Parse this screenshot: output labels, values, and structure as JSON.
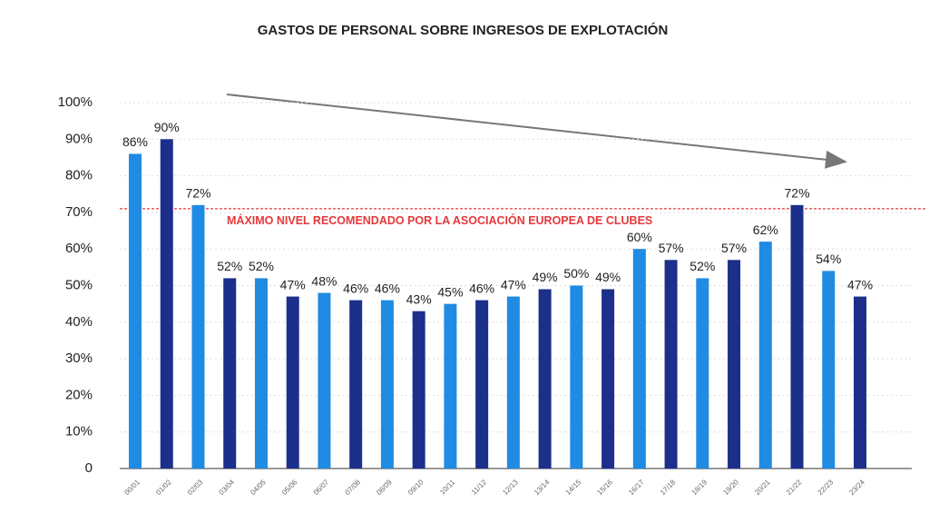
{
  "chart_data": {
    "type": "bar",
    "title": "GASTOS DE PERSONAL SOBRE INGRESOS DE EXPLOTACIÓN",
    "categories": [
      "00/01",
      "01/02",
      "02/03",
      "03/04",
      "04/05",
      "05/06",
      "06/07",
      "07/08",
      "08/09",
      "09/10",
      "10/11",
      "11/12",
      "12/13",
      "13/14",
      "14/15",
      "15/16",
      "16/17",
      "17/18",
      "18/19",
      "19/20",
      "20/21",
      "21/22",
      "22/23",
      "23/24"
    ],
    "values": [
      86,
      90,
      72,
      52,
      52,
      47,
      48,
      46,
      46,
      43,
      45,
      46,
      47,
      49,
      50,
      49,
      60,
      57,
      52,
      57,
      62,
      72,
      54,
      47
    ],
    "value_labels": [
      "86%",
      "90%",
      "72%",
      "52%",
      "52%",
      "47%",
      "48%",
      "46%",
      "46%",
      "43%",
      "45%",
      "46%",
      "47%",
      "49%",
      "50%",
      "49%",
      "60%",
      "57%",
      "52%",
      "57%",
      "62%",
      "72%",
      "54%",
      "47%"
    ],
    "colors": [
      "#1f8be2",
      "#1b2f8b"
    ],
    "ylim": [
      0,
      100
    ],
    "yticks": [
      0,
      {
        "value": 10,
        "label": "10%"
      },
      {
        "value": 20,
        "label": "20%"
      },
      {
        "value": 30,
        "label": "30%"
      },
      {
        "value": 40,
        "label": "40%"
      },
      {
        "value": 50,
        "label": "50%"
      },
      {
        "value": 60,
        "label": "60%"
      },
      {
        "value": 70,
        "label": "70%"
      },
      {
        "value": 80,
        "label": "80%"
      },
      {
        "value": 90,
        "label": "90%"
      },
      {
        "value": 100,
        "label": "100%"
      }
    ],
    "grid": true,
    "reference_line": {
      "value": 71,
      "label": "MÁXIMO NIVEL RECOMENDADO POR LA ASOCIACIÓN EUROPEA DE CLUBES",
      "color": "#e5383b"
    }
  }
}
